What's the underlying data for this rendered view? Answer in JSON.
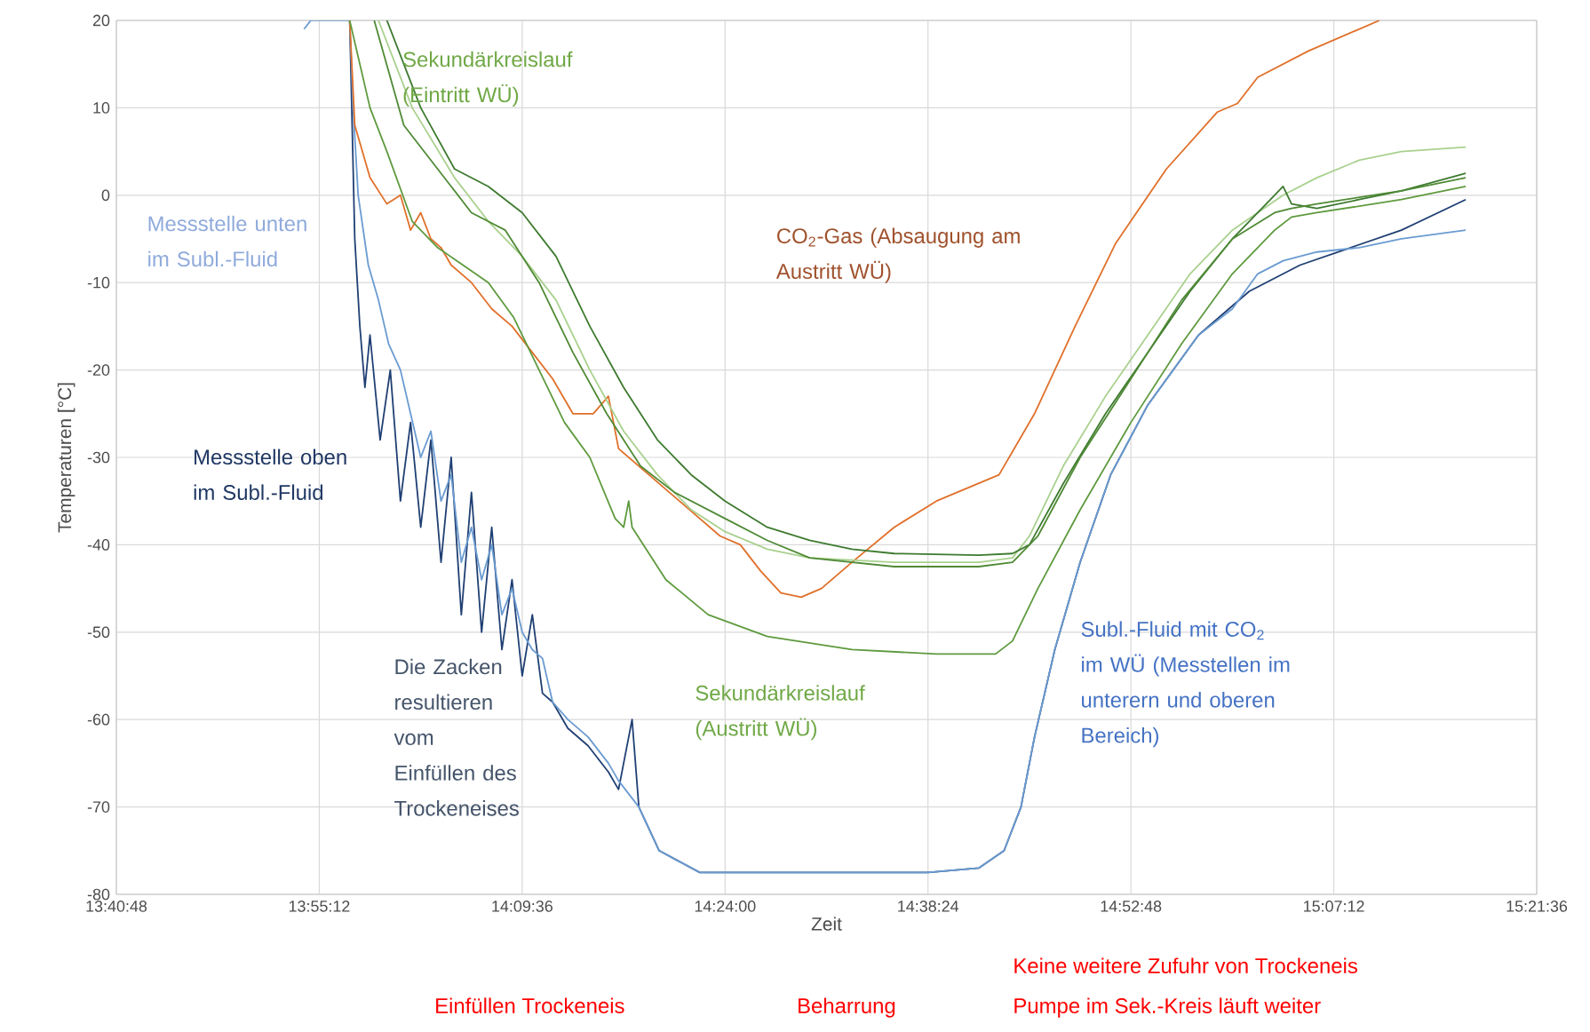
{
  "chart_data": {
    "type": "line",
    "xlabel": "Zeit",
    "ylabel": "Temperaturen [°C]",
    "xlim": [
      13.68,
      15.36
    ],
    "ylim": [
      -80,
      20
    ],
    "xticks": [
      {
        "value": 13.68,
        "label": "13:40:48"
      },
      {
        "value": 13.92,
        "label": "13:55:12"
      },
      {
        "value": 14.16,
        "label": "14:09:36"
      },
      {
        "value": 14.4,
        "label": "14:24:00"
      },
      {
        "value": 14.64,
        "label": "14:38:24"
      },
      {
        "value": 14.88,
        "label": "14:52:48"
      },
      {
        "value": 15.12,
        "label": "15:07:12"
      },
      {
        "value": 15.36,
        "label": "15:21:36"
      }
    ],
    "yticks": [
      -80,
      -70,
      -60,
      -50,
      -40,
      -30,
      -20,
      -10,
      0,
      10,
      20
    ],
    "grid": true,
    "series": [
      {
        "color": "#1f3f73",
        "x": [
          13.956,
          13.962,
          13.968,
          13.974,
          13.98,
          13.992,
          14.004,
          14.016,
          14.028,
          14.04,
          14.052,
          14.064,
          14.076,
          14.088,
          14.1,
          14.112,
          14.124,
          14.136,
          14.148,
          14.16,
          14.172,
          14.184,
          14.196,
          14.214,
          14.238,
          14.262,
          14.274,
          14.286,
          14.29,
          14.298,
          14.322,
          14.37,
          14.46,
          14.55,
          14.64,
          14.7,
          14.73,
          14.75,
          14.766,
          14.79,
          14.82,
          14.856,
          14.9,
          14.96,
          15.02,
          15.08,
          15.14,
          15.2,
          15.276
        ],
        "values": [
          20,
          -5,
          -15,
          -22,
          -16,
          -28,
          -20,
          -35,
          -26,
          -38,
          -28,
          -42,
          -30,
          -48,
          -34,
          -50,
          -38,
          -52,
          -44,
          -55,
          -48,
          -57,
          -58,
          -61,
          -63,
          -66,
          -68,
          -62,
          -60,
          -70,
          -75,
          -77.5,
          -77.5,
          -77.5,
          -77.5,
          -77,
          -75,
          -70,
          -62,
          -52,
          -42,
          -32,
          -24,
          -16,
          -11,
          -8,
          -6,
          -4,
          -0.5
        ]
      },
      {
        "color": "#6a9bd1",
        "x": [
          13.902,
          13.91,
          13.956,
          13.96,
          13.966,
          13.978,
          13.99,
          14.002,
          14.016,
          14.028,
          14.04,
          14.052,
          14.064,
          14.076,
          14.088,
          14.1,
          14.112,
          14.124,
          14.136,
          14.148,
          14.16,
          14.172,
          14.184,
          14.196,
          14.214,
          14.238,
          14.262,
          14.274,
          14.298,
          14.322,
          14.37,
          14.64,
          14.7,
          14.73,
          14.75,
          14.766,
          14.79,
          14.82,
          14.856,
          14.9,
          14.96,
          15.0,
          15.03,
          15.06,
          15.1,
          15.15,
          15.2,
          15.276
        ],
        "values": [
          19,
          20,
          20,
          10,
          0,
          -8,
          -12,
          -17,
          -20,
          -25,
          -30,
          -27,
          -35,
          -32,
          -42,
          -38,
          -44,
          -40,
          -48,
          -45,
          -50,
          -52,
          -53,
          -58,
          -60,
          -62,
          -65,
          -67,
          -70,
          -75,
          -77.5,
          -77.5,
          -77,
          -75,
          -70,
          -62,
          -52,
          -42,
          -32,
          -24,
          -16,
          -13,
          -9,
          -7.5,
          -6.5,
          -6,
          -5,
          -4
        ]
      },
      {
        "color": "#e0702a",
        "x": [
          13.956,
          13.962,
          13.98,
          14.0,
          14.016,
          14.028,
          14.04,
          14.052,
          14.064,
          14.076,
          14.1,
          14.124,
          14.148,
          14.172,
          14.196,
          14.22,
          14.244,
          14.262,
          14.274,
          14.298,
          14.322,
          14.346,
          14.37,
          14.394,
          14.418,
          14.442,
          14.466,
          14.49,
          14.514,
          14.55,
          14.6,
          14.65,
          14.724,
          14.766,
          14.814,
          14.862,
          14.922,
          14.982,
          15.006,
          15.03,
          15.09,
          15.174
        ],
        "values": [
          20,
          8,
          2,
          -1,
          0,
          -4,
          -2,
          -5,
          -6,
          -8,
          -10,
          -13,
          -15,
          -18,
          -21,
          -25,
          -25,
          -23,
          -29,
          -31,
          -33,
          -35,
          -37,
          -39,
          -40,
          -43,
          -45.5,
          -46,
          -45,
          -42,
          -38,
          -35,
          -32,
          -25,
          -15,
          -5.5,
          3,
          9.5,
          10.5,
          13.5,
          16.5,
          20
        ]
      },
      {
        "color": "#a9d18e",
        "x": [
          13.99,
          14.03,
          14.08,
          14.12,
          14.16,
          14.2,
          14.24,
          14.28,
          14.32,
          14.36,
          14.4,
          14.45,
          14.5,
          14.6,
          14.7,
          14.74,
          14.76,
          14.8,
          14.85,
          14.9,
          14.95,
          15.0,
          15.06,
          15.1,
          15.15,
          15.2,
          15.276
        ],
        "values": [
          20,
          10,
          2,
          -3,
          -7,
          -12,
          -20,
          -27,
          -32,
          -36,
          -38.5,
          -40.5,
          -41.5,
          -42,
          -42,
          -41.5,
          -39,
          -31,
          -23,
          -16,
          -9,
          -4,
          0,
          2,
          4,
          5,
          5.5
        ]
      },
      {
        "color": "#3d7a2f",
        "x": [
          14.0,
          14.04,
          14.08,
          14.12,
          14.16,
          14.2,
          14.24,
          14.28,
          14.32,
          14.36,
          14.4,
          14.45,
          14.5,
          14.55,
          14.6,
          14.7,
          14.74,
          14.76,
          14.8,
          14.85,
          14.9,
          14.95,
          15.0,
          15.04,
          15.06,
          15.07,
          15.1,
          15.15,
          15.2,
          15.276
        ],
        "values": [
          20,
          10,
          3,
          1,
          -2,
          -7,
          -15,
          -22,
          -28,
          -32,
          -35,
          -38,
          -39.5,
          -40.5,
          -41,
          -41.2,
          -41,
          -40,
          -33,
          -25,
          -18,
          -11,
          -5,
          -1,
          1,
          -1,
          -1.5,
          -0.5,
          0.5,
          2.5
        ]
      },
      {
        "color": "#4f8a35",
        "x": [
          13.985,
          14.02,
          14.06,
          14.1,
          14.14,
          14.18,
          14.22,
          14.26,
          14.3,
          14.34,
          14.4,
          14.45,
          14.5,
          14.6,
          14.7,
          14.74,
          14.77,
          14.82,
          14.88,
          14.94,
          15.0,
          15.05,
          15.07,
          15.1,
          15.2,
          15.276
        ],
        "values": [
          20,
          8,
          3,
          -2,
          -4,
          -10,
          -18,
          -25,
          -31,
          -34,
          -37,
          -39.5,
          -41.5,
          -42.5,
          -42.5,
          -42,
          -39,
          -30,
          -21,
          -12,
          -5,
          -2,
          -1.5,
          -1,
          0.5,
          2
        ]
      },
      {
        "color": "#5e9a3e",
        "x": [
          13.956,
          13.98,
          14.0,
          14.03,
          14.06,
          14.09,
          14.12,
          14.15,
          14.18,
          14.21,
          14.24,
          14.27,
          14.28,
          14.286,
          14.29,
          14.33,
          14.38,
          14.45,
          14.55,
          14.65,
          14.72,
          14.74,
          14.77,
          14.82,
          14.88,
          14.94,
          15.0,
          15.05,
          15.07,
          15.1,
          15.2,
          15.276
        ],
        "values": [
          20,
          10,
          5,
          -3,
          -6,
          -8,
          -10,
          -14,
          -20,
          -26,
          -30,
          -37,
          -38,
          -35,
          -38,
          -44,
          -48,
          -50.5,
          -52,
          -52.5,
          -52.5,
          -51,
          -45,
          -36,
          -26,
          -17,
          -9,
          -4,
          -2.5,
          -2,
          -0.5,
          1
        ]
      }
    ],
    "annotations": [
      "Sekundärkreislauf (Eintritt WÜ)",
      "Messstelle unten im Subl.-Fluid",
      "CO$_{2}$-Gas (Absaugung am Austritt WÜ)",
      "Messstelle oben im Subl.-Fluid",
      "Die Zacken resultieren vom Einfüllen des Trockeneises",
      "Sekundärkreislauf (Austritt WÜ)",
      "Subl.-Fluid mit CO$_{2}$ im WÜ (Messtellen im unterern und oberen Bereich)",
      "Einfüllen Trockeneis",
      "Beharrung",
      "Keine weitere Zufuhr von Trockeneis",
      "Pumpe im Sek.-Kreis läuft weiter"
    ]
  }
}
